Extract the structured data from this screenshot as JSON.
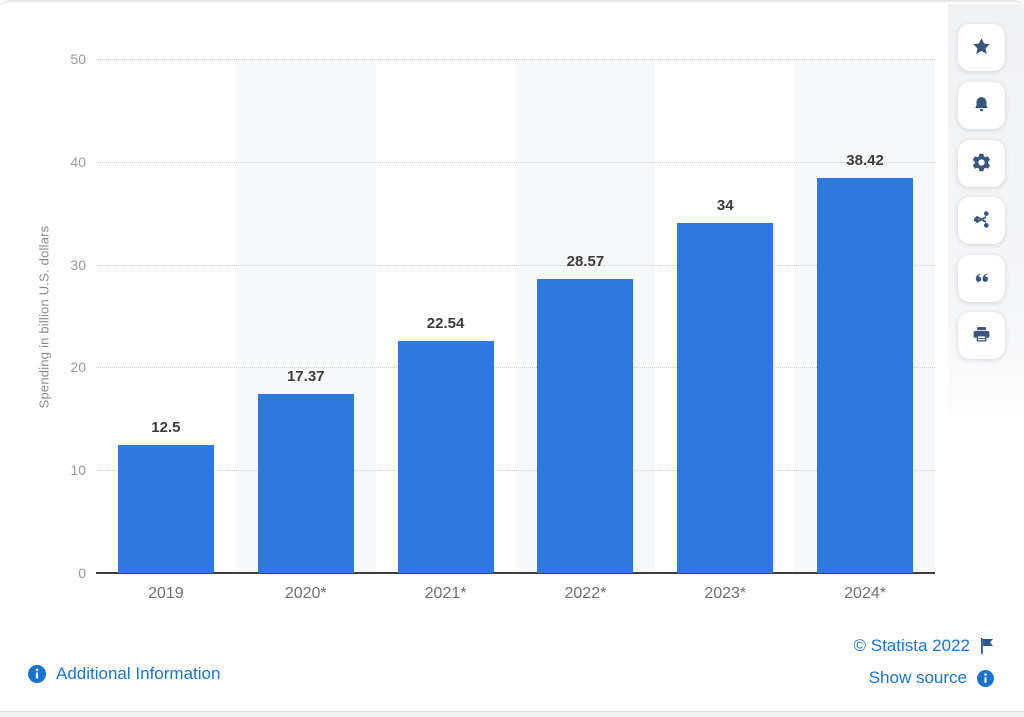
{
  "chart_data": {
    "type": "bar",
    "title": "",
    "categories": [
      "2019",
      "2020*",
      "2021*",
      "2022*",
      "2023*",
      "2024*"
    ],
    "values": [
      12.5,
      17.37,
      22.54,
      28.57,
      34,
      38.42
    ],
    "value_labels": [
      "12.5",
      "17.37",
      "22.54",
      "28.57",
      "34",
      "38.42"
    ],
    "xlabel": "",
    "ylabel": "Spending in billion U.S. dollars",
    "ylim": [
      0,
      50
    ],
    "yticks": [
      0,
      10,
      20,
      30,
      40,
      50
    ],
    "grid": "horizontal-dotted",
    "legend": "none",
    "bar_color": "#2e79de",
    "band_color": "#f7f8f9",
    "banded_columns": [
      1,
      3,
      5
    ]
  },
  "sidebar": {
    "icons": [
      "star-icon",
      "bell-icon",
      "gear-icon",
      "share-icon",
      "quote-icon",
      "print-icon"
    ]
  },
  "footer": {
    "additional_info_label": "Additional Information",
    "copyright_label": "© Statista 2022",
    "show_source_label": "Show source"
  },
  "colors": {
    "accent_link": "#1b74cf",
    "icon_navy": "#3a567d",
    "bar_blue": "#2e79de",
    "value_label": "#3c3c3c",
    "axis_text": "#9a9a9a",
    "category_text": "#6f6f6f"
  }
}
